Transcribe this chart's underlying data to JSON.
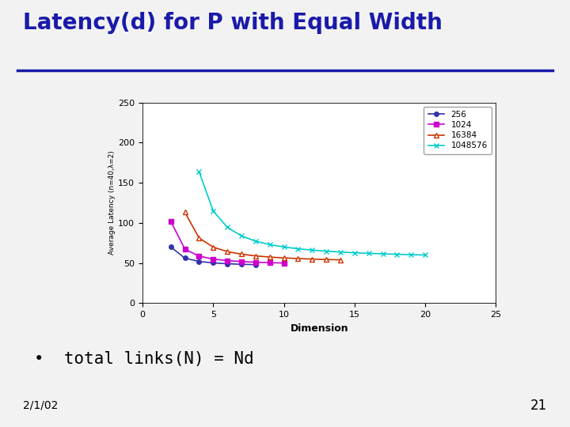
{
  "title": "Latency(d) for P with Equal Width",
  "title_color": "#1a1aaa",
  "title_fontsize": 20,
  "xlabel": "Dimension",
  "ylabel": "Average Latency (n=40,λ=2)",
  "xlim": [
    0,
    25
  ],
  "ylim": [
    0,
    250
  ],
  "xticks": [
    0,
    5,
    10,
    15,
    20,
    25
  ],
  "yticks": [
    0,
    50,
    100,
    150,
    200,
    250
  ],
  "fig_bg_color": "#f2f2f2",
  "chart_bg_color": "#ffffff",
  "plot_bg_color": "#ffffff",
  "series": [
    {
      "N": 256,
      "label": "256",
      "color": "#3333aa",
      "marker": "o",
      "markersize": 4,
      "linestyle": "-",
      "markerfacecolor": "#3333aa"
    },
    {
      "N": 1024,
      "label": "1024",
      "color": "#cc00cc",
      "marker": "s",
      "markersize": 4,
      "linestyle": "-",
      "markerfacecolor": "#cc00cc"
    },
    {
      "N": 16384,
      "label": "16384",
      "color": "#cc3300",
      "marker": "^",
      "markersize": 5,
      "linestyle": "-",
      "markerfacecolor": "#ffffff"
    },
    {
      "N": 1048576,
      "label": "1048576",
      "color": "#00cccc",
      "marker": "x",
      "markersize": 5,
      "linestyle": "-",
      "markerfacecolor": "#00cccc"
    }
  ],
  "bullet_text": "total links(N) = Nd",
  "date_text": "2/1/02",
  "page_num": "21",
  "n_val": 40,
  "lambda_val": 2,
  "title_line_color": "#1a1aaa",
  "chart_border_color": "#aaaaaa"
}
